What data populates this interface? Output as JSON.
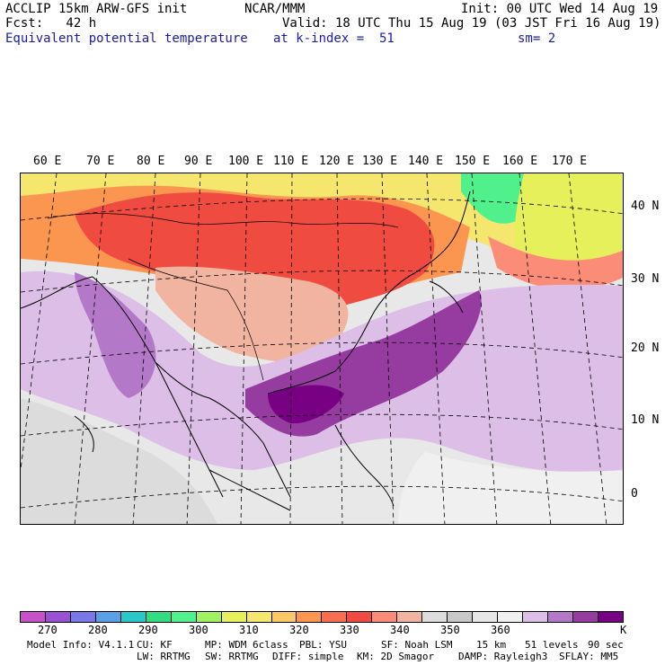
{
  "header": {
    "line1_left": "ACCLIP 15km ARW-GFS init",
    "line1_mid": "NCAR/MMM",
    "line1_right": "Init: 00 UTC Wed 14 Aug 19",
    "line2_left": "Fcst:   42 h",
    "line2_right": "Valid: 18 UTC Thu 15 Aug 19 (03 JST Fri 16 Aug 19)",
    "line3_left": "Equivalent potential temperature",
    "line3_mid": "at k-index =  51",
    "line3_right": "sm= 2"
  },
  "map": {
    "lon_labels": [
      "60 E",
      "70 E",
      "80 E",
      "90 E",
      "100 E",
      "110 E",
      "120 E",
      "130 E",
      "140 E",
      "150 E",
      "160 E",
      "170 E"
    ],
    "lat_labels": [
      "40 N",
      "30 N",
      "20 N",
      "10 N",
      "0"
    ],
    "colors": {
      "land_outline": "#000000",
      "grid": "#000000"
    }
  },
  "colorbar": {
    "colors": [
      "#c850c8",
      "#9a50d2",
      "#7878e6",
      "#5aa0e6",
      "#28c8c8",
      "#32dc82",
      "#50f08c",
      "#a0f064",
      "#e6f05a",
      "#f5e66e",
      "#fac864",
      "#fa9650",
      "#fa6e50",
      "#f04b41",
      "#fa8c78",
      "#f0b4a0",
      "#dcdcdc",
      "#c8c8c8",
      "#e6e6e6",
      "#f0f0f0",
      "#dcbee6",
      "#b478c8",
      "#963ca0",
      "#780082"
    ],
    "ticks": [
      "270",
      "280",
      "290",
      "300",
      "310",
      "320",
      "330",
      "340",
      "350",
      "360"
    ],
    "unit": "K"
  },
  "footer": {
    "model_info": "Model Info: V4.1.1",
    "cu": "CU: KF",
    "mp": "MP: WDM 6class",
    "pbl": "PBL: YSU",
    "sf": "SF: Noah LSM",
    "res": "15 km",
    "levels": "51 levels",
    "dt": "90 sec",
    "lw": "LW: RRTMG",
    "sw": "SW: RRTMG",
    "diff": "DIFF: simple",
    "km": "KM: 2D Smagor",
    "damp": "DAMP: Rayleigh3",
    "sflay": "SFLAY: MM5"
  }
}
